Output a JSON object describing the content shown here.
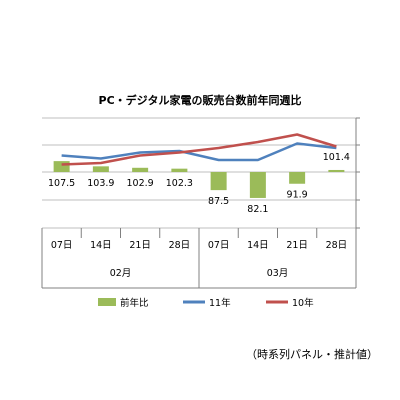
{
  "chart_data": {
    "type": "bar",
    "title": "PC・デジタル家電の販売台数前年同週比",
    "categories": [
      "07日",
      "14日",
      "21日",
      "28日",
      "07日",
      "14日",
      "21日",
      "28日"
    ],
    "groups": [
      {
        "label": "02月",
        "span": [
          0,
          3
        ]
      },
      {
        "label": "03月",
        "span": [
          4,
          7
        ]
      }
    ],
    "series": [
      {
        "name": "前年比",
        "kind": "bar",
        "color": "#9bbb59",
        "values": [
          107.5,
          103.9,
          102.9,
          102.3,
          87.5,
          82.1,
          91.9,
          101.4
        ],
        "axis": "ratio"
      },
      {
        "name": "11年",
        "kind": "line",
        "color": "#4f81bd",
        "values": [
          0.55,
          0.45,
          0.65,
          0.7,
          0.4,
          0.4,
          0.95,
          0.8
        ],
        "axis": "count"
      },
      {
        "name": "10年",
        "kind": "line",
        "color": "#c0504d",
        "values": [
          0.25,
          0.3,
          0.55,
          0.65,
          0.8,
          1.0,
          1.25,
          0.85
        ],
        "axis": "count"
      }
    ],
    "ratio_axis": {
      "baseline": 100
    },
    "grid": true,
    "legend_position": "bottom"
  },
  "footnote": "（時系列パネル・推計値）"
}
